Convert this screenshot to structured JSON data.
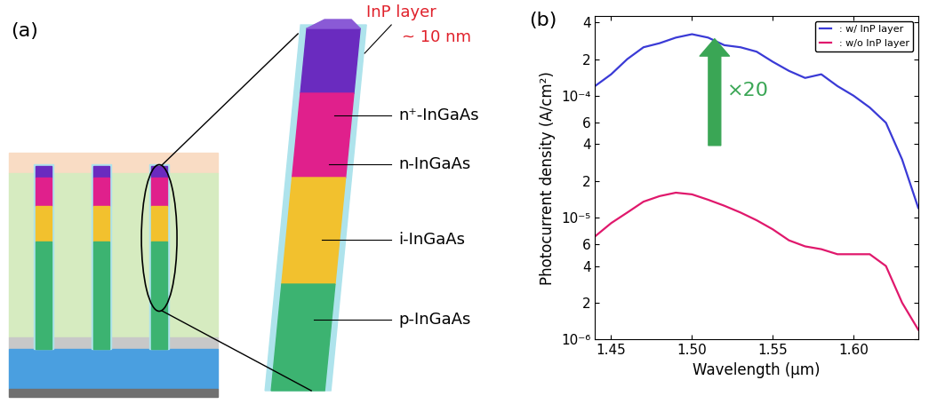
{
  "chart_data": {
    "type": "line",
    "panel_label": "(b)",
    "x_label": "Wavelength (μm)",
    "y_label": "Photocurrent density (A/cm²)",
    "x": [
      1.44,
      1.45,
      1.46,
      1.47,
      1.48,
      1.49,
      1.5,
      1.51,
      1.52,
      1.53,
      1.54,
      1.55,
      1.56,
      1.57,
      1.58,
      1.59,
      1.6,
      1.61,
      1.62,
      1.63,
      1.64
    ],
    "series": [
      {
        "name": ": w/ InP layer",
        "color": "#3a3ad6",
        "values": [
          0.00012,
          0.00015,
          0.0002,
          0.00025,
          0.00027,
          0.0003,
          0.00032,
          0.0003,
          0.00026,
          0.00025,
          0.00023,
          0.00019,
          0.00016,
          0.00014,
          0.00015,
          0.00012,
          0.0001,
          8e-05,
          6e-05,
          3e-05,
          1.2e-05
        ]
      },
      {
        "name": ": w/o InP layer",
        "color": "#e0186c",
        "values": [
          7e-06,
          9e-06,
          1.1e-05,
          1.35e-05,
          1.5e-05,
          1.6e-05,
          1.55e-05,
          1.4e-05,
          1.25e-05,
          1.1e-05,
          9.5e-06,
          8e-06,
          6.5e-06,
          5.8e-06,
          5.5e-06,
          5e-06,
          5e-06,
          5e-06,
          4e-06,
          2e-06,
          1.2e-06
        ]
      }
    ],
    "xlim": [
      1.44,
      1.64
    ],
    "ylim": [
      1e-06,
      0.00045
    ],
    "log": "y",
    "xticks": [
      1.45,
      {
        "value": 1.5,
        "label": "1.50"
      },
      1.55,
      {
        "value": 1.6,
        "label": "1.60"
      }
    ],
    "yticks": [
      {
        "value": 1e-06,
        "label": "10⁻⁶"
      },
      {
        "value": 2e-06,
        "label": "2"
      },
      {
        "value": 4e-06,
        "label": "4"
      },
      {
        "value": 6e-06,
        "label": "6"
      },
      {
        "value": 1e-05,
        "label": "10⁻⁵"
      },
      {
        "value": 2e-05,
        "label": "2"
      },
      {
        "value": 4e-05,
        "label": "4"
      },
      {
        "value": 6e-05,
        "label": "6"
      },
      {
        "value": 0.0001,
        "label": "10⁻⁴"
      },
      {
        "value": 0.0002,
        "label": "2"
      },
      {
        "value": 0.0004,
        "label": "4"
      }
    ],
    "legend": "upper right",
    "annotations": [
      "×20"
    ]
  },
  "diagram": {
    "panel_label": "(a)",
    "callout": [
      "InP layer",
      "~ 10 nm"
    ],
    "layers": [
      "n⁺-InGaAs",
      "n-InGaAs",
      "i-InGaAs",
      "p-InGaAs"
    ]
  }
}
